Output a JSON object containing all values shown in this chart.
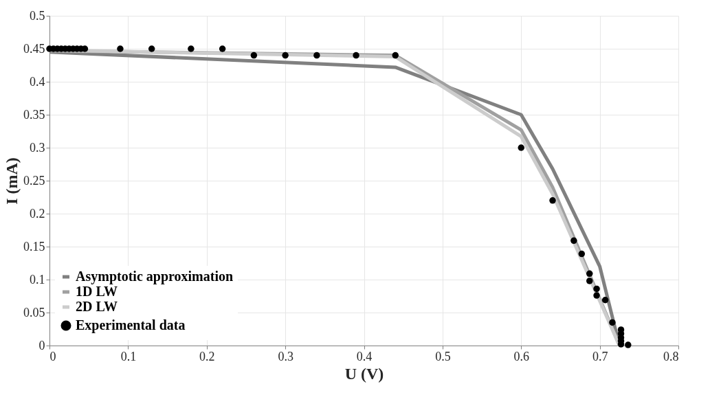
{
  "chart_data": {
    "type": "line",
    "xlabel": "U (V)",
    "ylabel": "I (mA)",
    "xlim": [
      0,
      0.8
    ],
    "xticks": [
      0,
      0.1,
      0.2,
      0.3,
      0.4,
      0.5,
      0.6,
      0.7,
      0.8
    ],
    "ylim": [
      0,
      0.5
    ],
    "yticks": [
      0,
      0.05,
      0.1,
      0.15,
      0.2,
      0.25,
      0.3,
      0.35,
      0.4,
      0.45,
      0.5
    ],
    "grid": true,
    "legend": "bottom left",
    "series": [
      {
        "name": "Asymptotic approximation",
        "color": "#808080",
        "marker": "none",
        "x": [
          0,
          0.44,
          0.6,
          0.64,
          0.7,
          0.725
        ],
        "values": [
          0.445,
          0.422,
          0.35,
          0.268,
          0.12,
          0
        ]
      },
      {
        "name": "1D LW",
        "color": "#a0a0a0",
        "marker": "none",
        "x": [
          0,
          0.44,
          0.6,
          0.64,
          0.725
        ],
        "values": [
          0.447,
          0.44,
          0.327,
          0.24,
          0
        ]
      },
      {
        "name": "2D LW",
        "color": "#cccccc",
        "marker": "none",
        "x": [
          0,
          0.44,
          0.6,
          0.64,
          0.725
        ],
        "values": [
          0.448,
          0.438,
          0.317,
          0.23,
          0
        ]
      },
      {
        "name": "Experimental data",
        "color": "#000000",
        "type": "scatter",
        "marker": "circle",
        "x": [
          0,
          0.005,
          0.01,
          0.015,
          0.02,
          0.025,
          0.03,
          0.035,
          0.04,
          0.045,
          0.09,
          0.13,
          0.18,
          0.22,
          0.26,
          0.3,
          0.34,
          0.39,
          0.44,
          0.6,
          0.64,
          0.667,
          0.677,
          0.687,
          0.687,
          0.696,
          0.696,
          0.707,
          0.716,
          0.727,
          0.727,
          0.727,
          0.727,
          0.727,
          0.736
        ],
        "values": [
          0.45,
          0.45,
          0.45,
          0.45,
          0.45,
          0.45,
          0.45,
          0.45,
          0.45,
          0.45,
          0.45,
          0.45,
          0.45,
          0.45,
          0.44,
          0.44,
          0.44,
          0.44,
          0.44,
          0.3,
          0.22,
          0.159,
          0.139,
          0.109,
          0.098,
          0.086,
          0.076,
          0.069,
          0.035,
          0.024,
          0.018,
          0.012,
          0.007,
          0.002,
          0.001
        ]
      }
    ]
  }
}
